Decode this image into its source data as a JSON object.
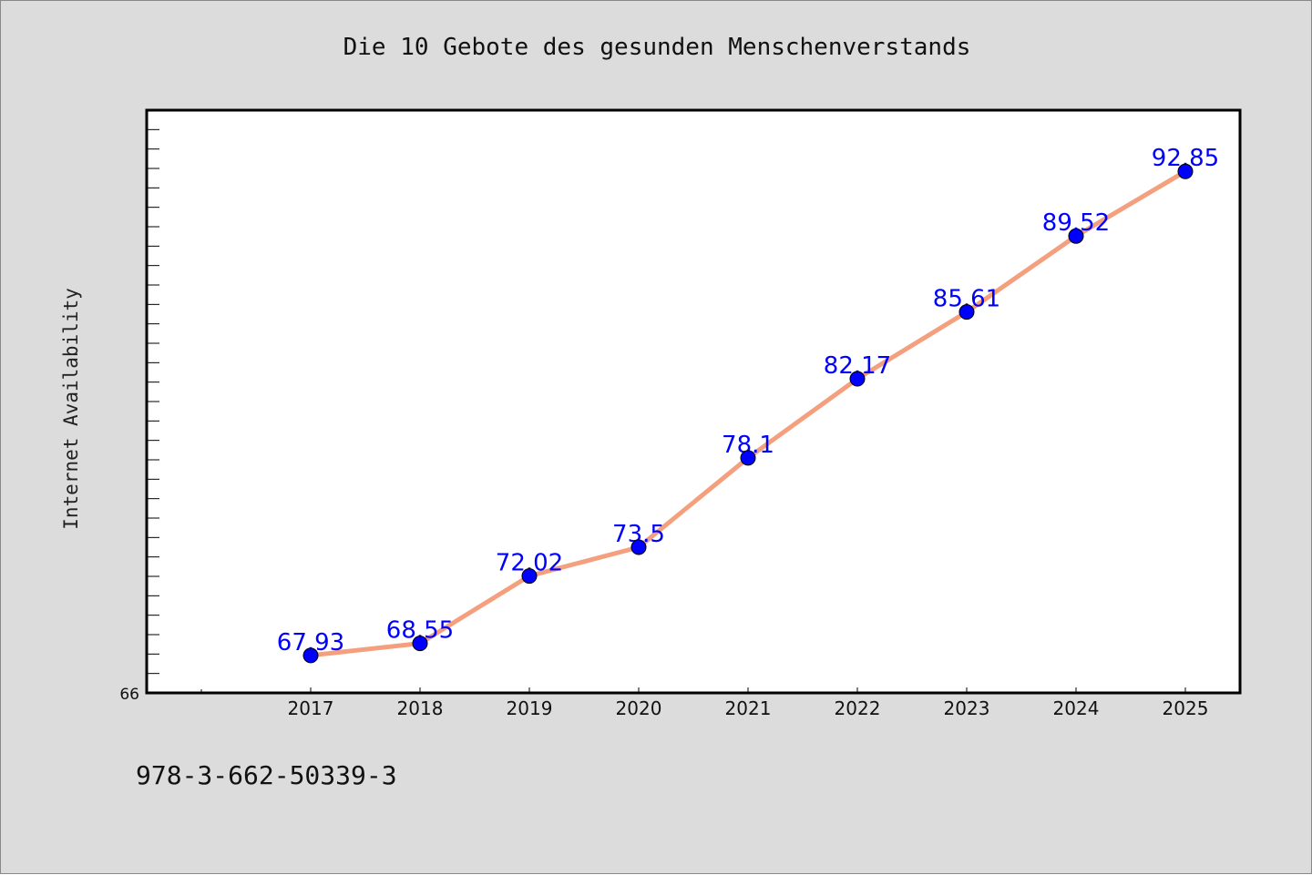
{
  "chart_data": {
    "type": "line",
    "title": "Die 10 Gebote des gesunden Menschenverstands",
    "xlabel": "",
    "ylabel": "Internet Availability",
    "categories": [
      "2017",
      "2018",
      "2019",
      "2020",
      "2021",
      "2022",
      "2023",
      "2024",
      "2025"
    ],
    "series": [
      {
        "values": [
          67.93,
          68.55,
          72.02,
          73.5,
          78.1,
          82.17,
          85.61,
          89.52,
          92.85
        ]
      }
    ],
    "data_labels": [
      "67.93",
      "68.55",
      "72.02",
      "73.5",
      "78.1",
      "82.17",
      "85.61",
      "89.52",
      "92.85"
    ],
    "ylim": [
      66,
      96
    ],
    "y_tick_labels": [
      "66"
    ],
    "grid": false,
    "legend": "none",
    "colors": {
      "line": "#f4a07e",
      "marker": "#0000ff",
      "label": "#0000ff",
      "background": "#dcdcdc",
      "plot_bg": "#ffffff"
    }
  },
  "footer": {
    "code": "978-3-662-50339-3"
  }
}
